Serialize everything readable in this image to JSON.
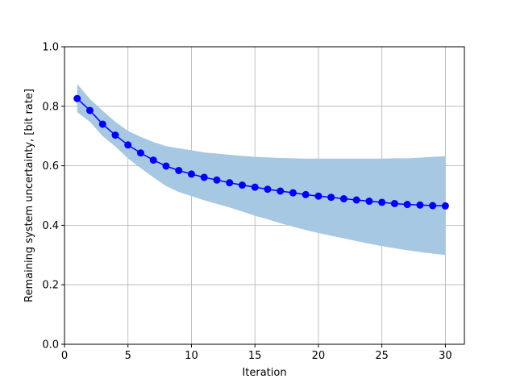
{
  "chart_data": {
    "type": "line",
    "xlabel": "Iteration",
    "ylabel": "Remaining system uncertainty, [bit rate]",
    "xlim": [
      0,
      31.5
    ],
    "ylim": [
      0.0,
      1.0
    ],
    "xticks": [
      0,
      5,
      10,
      15,
      20,
      25,
      30
    ],
    "xtick_labels": [
      "0",
      "5",
      "10",
      "15",
      "20",
      "25",
      "30"
    ],
    "yticks": [
      0.0,
      0.2,
      0.4,
      0.6,
      0.8,
      1.0
    ],
    "ytick_labels": [
      "0.0",
      "0.2",
      "0.4",
      "0.6",
      "0.8",
      "1.0"
    ],
    "grid": true,
    "x": [
      1,
      2,
      3,
      4,
      5,
      6,
      7,
      8,
      9,
      10,
      11,
      12,
      13,
      14,
      15,
      16,
      17,
      18,
      19,
      20,
      21,
      22,
      23,
      24,
      25,
      26,
      27,
      28,
      29,
      30
    ],
    "series": [
      {
        "values": [
          0.826,
          0.786,
          0.74,
          0.703,
          0.67,
          0.643,
          0.619,
          0.599,
          0.584,
          0.572,
          0.561,
          0.552,
          0.543,
          0.535,
          0.528,
          0.521,
          0.515,
          0.509,
          0.503,
          0.498,
          0.494,
          0.489,
          0.485,
          0.481,
          0.477,
          0.473,
          0.47,
          0.468,
          0.466,
          0.465
        ],
        "color": "#0000ff",
        "marker": "circle"
      }
    ],
    "band": {
      "upper": [
        0.875,
        0.825,
        0.785,
        0.748,
        0.717,
        0.697,
        0.68,
        0.666,
        0.659,
        0.652,
        0.645,
        0.641,
        0.637,
        0.633,
        0.63,
        0.628,
        0.626,
        0.625,
        0.624,
        0.624,
        0.624,
        0.624,
        0.624,
        0.624,
        0.624,
        0.625,
        0.625,
        0.627,
        0.63,
        0.632
      ],
      "lower": [
        0.78,
        0.748,
        0.7,
        0.665,
        0.625,
        0.592,
        0.561,
        0.532,
        0.512,
        0.498,
        0.484,
        0.472,
        0.46,
        0.446,
        0.432,
        0.42,
        0.407,
        0.395,
        0.384,
        0.374,
        0.365,
        0.356,
        0.347,
        0.338,
        0.33,
        0.323,
        0.316,
        0.31,
        0.305,
        0.3
      ],
      "color": "#a6c8e2"
    }
  }
}
